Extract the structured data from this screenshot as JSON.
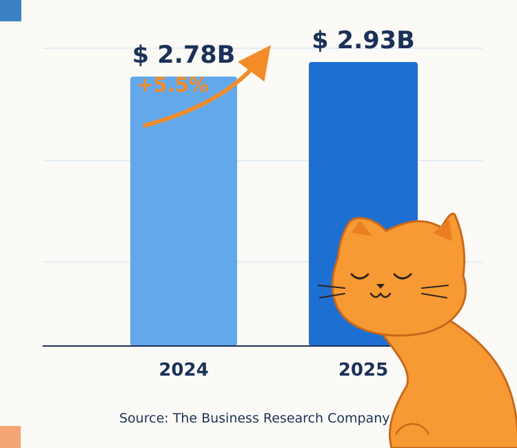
{
  "chart_data": {
    "type": "bar",
    "categories": [
      "2024",
      "2025"
    ],
    "values": [
      2.78,
      2.93
    ],
    "value_labels": [
      "$ 2.78B",
      "$ 2.93B"
    ],
    "growth_label": "+5.5%",
    "source": "Source:  The Business Research Company",
    "ylim": [
      0,
      3.2
    ],
    "grid": true,
    "legend": "none",
    "colors": {
      "bar_2024": "#64a8ec",
      "bar_2025": "#1d6fd1",
      "label": "#1b3157",
      "growth": "#f28c28",
      "baseline": "#1b3157",
      "gridline": "#dde8f2"
    }
  },
  "decorations": {
    "cat_icon": "sleeping-cat-illustration",
    "colors": {
      "cat_fur": "#f79a33",
      "cat_outline": "#c9681b",
      "cat_ear_inner": "#e97f22",
      "cat_face": "#2c241f",
      "corner_blue": "#3b82c4",
      "corner_orange": "#f4a574"
    }
  }
}
